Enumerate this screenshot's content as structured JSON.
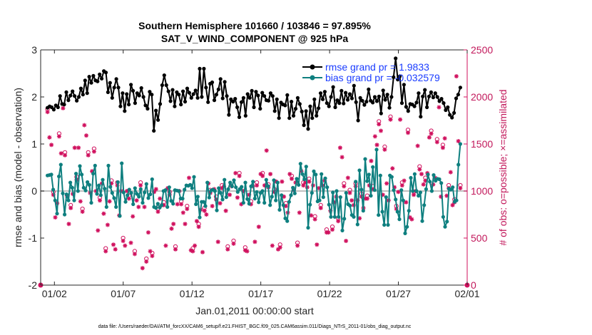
{
  "chart_data": {
    "type": "line",
    "title_line1": "Southern Hemisphere 101660 / 103846 = 97.895%",
    "title_line2": "SAT_V_WIND_COMPONENT @ 925 hPa",
    "xlabel": "Jan.01,2011 00:00:00 start",
    "ylabel_left": "rmse and bias (model - observation)",
    "ylabel_right": "# of obs: o=possible; ×=assimilated",
    "footer": "data file: /Users/raeder/DAI/ATM_forcXX/CAM6_setup/f.e21.FHIST_BGC.f09_025.CAM6assim.011/Diags_NTrS_2011-01/obs_diag_output.nc",
    "xlim": [
      0.5,
      31.5
    ],
    "ylim": [
      -2,
      3
    ],
    "ylim_right": [
      0,
      2500
    ],
    "x_ticks": [
      1.5,
      6.5,
      11.5,
      16.5,
      21.5,
      26.5,
      31.5
    ],
    "x_tick_labels": [
      "01/02",
      "01/07",
      "01/12",
      "01/17",
      "01/22",
      "01/27",
      "02/01"
    ],
    "y_ticks": [
      -2,
      -1,
      0,
      1,
      2,
      3
    ],
    "y_tick_labels": [
      "-2",
      "-1",
      "0",
      "1",
      "2",
      "3"
    ],
    "y_ticks_right": [
      0,
      500,
      1000,
      1500,
      2000,
      2500
    ],
    "y_tick_labels_right": [
      "0",
      "500",
      "1000",
      "1500",
      "2000",
      "2500"
    ],
    "zero_line": 0,
    "colors": {
      "rmse": "#000000",
      "bias": "#0e7f7f",
      "obs": "#d0115e",
      "zero": "#c0c0c0",
      "legend_text": "#1a3cff"
    },
    "series": [
      {
        "name": "rmse grand pr = 1.9833",
        "marker": "filled-circle",
        "axis": "left",
        "values": [
          1.77,
          1.8,
          1.78,
          1.73,
          1.82,
          1.78,
          2.02,
          1.85,
          1.84,
          2.1,
          1.93,
          2.03,
          2.12,
          2.02,
          1.92,
          2.0,
          2.18,
          2.05,
          2.35,
          2.08,
          2.43,
          2.3,
          2.45,
          2.35,
          2.33,
          2.48,
          2.39,
          2.55,
          2.52,
          2.1,
          2.3,
          1.98,
          2.2,
          2.38,
          2.2,
          1.8,
          2.08,
          1.7,
          2.06,
          1.84,
          2.26,
          2.13,
          1.87,
          2.08,
          2.03,
          2.19,
          2.0,
          1.82,
          1.75,
          2.11,
          2.05,
          1.28,
          1.71,
          1.51,
          1.85,
          2.25,
          2.46,
          2.25,
          2.12,
          1.91,
          2.15,
          1.8,
          2.1,
          2.05,
          1.84,
          2.12,
          1.9,
          2.18,
          2.09,
          1.98,
          2.06,
          2.14,
          1.98,
          2.6,
          2.0,
          2.6,
          2.2,
          1.89,
          2.28,
          2.31,
          1.93,
          2.05,
          2.16,
          2.38,
          1.97,
          2.32,
          2.02,
          1.62,
          1.95,
          1.9,
          1.96,
          1.78,
          1.57,
          1.89,
          1.98,
          1.6,
          2.06,
          1.98,
          2.13,
          1.78,
          2.11,
          2.03,
          1.75,
          2.09,
          2.02,
          1.93,
          1.92,
          2.08,
          2.02,
          1.7,
          1.95,
          1.55,
          1.88,
          1.84,
          1.82,
          2.04,
          1.55,
          1.9,
          1.6,
          1.75,
          1.98,
          1.85,
          1.69,
          1.4,
          1.7,
          1.32,
          1.8,
          1.55,
          1.95,
          1.6,
          1.76,
          2.08,
          1.95,
          2.11,
          1.87,
          1.8,
          2.0,
          2.21,
          1.78,
          1.93,
          1.87,
          2.13,
          1.86,
          2.09,
          1.94,
          2.06,
          1.97,
          2.24,
          1.89,
          1.5,
          1.98,
          1.92,
          1.83,
          1.9,
          2.16,
          1.92,
          1.88,
          2.0,
          1.91,
          2.01,
          1.65,
          2.14,
          1.94,
          2.05,
          1.77,
          2.0,
          2.42,
          2.82,
          2.37,
          2.44,
          1.87,
          2.26,
          1.79,
          1.7,
          1.85,
          1.84,
          1.8,
          1.88,
          2.08,
          1.58,
          2.01,
          2.15,
          1.78,
          2.01,
          2.1,
          1.99,
          2.08,
          2.0,
          1.91,
          1.96,
          1.87,
          1.72,
          1.78,
          1.62,
          1.56,
          1.66,
          1.97,
          2.05,
          2.2
        ]
      },
      {
        "name": "bias grand pr = -0.032579",
        "marker": "filled-circle",
        "axis": "left",
        "values": [
          0.33,
          0.34,
          0.35,
          0.03,
          -0.2,
          -0.48,
          0.31,
          0.56,
          -0.05,
          -0.5,
          -0.07,
          -0.2,
          0.18,
          0.07,
          -0.2,
          0.37,
          0.0,
          0.53,
          0.35,
          0.07,
          0.01,
          0.19,
          0.13,
          -0.25,
          0.37,
          0.54,
          -0.06,
          0.12,
          -0.09,
          0.24,
          0.05,
          -0.34,
          0.54,
          0.09,
          -0.04,
          -0.15,
          -0.34,
          0.19,
          -0.53,
          0.59,
          -0.03,
          -0.23,
          -0.09,
          0.03,
          -0.04,
          -0.28,
          0.06,
          -0.06,
          -0.12,
          0.04,
          -0.25,
          -0.03,
          0.15,
          -0.15,
          -0.07,
          0.25,
          -0.34,
          -0.36,
          -0.27,
          -0.35,
          -0.3,
          0.0,
          0.02,
          -0.34,
          0.08,
          -0.21,
          -0.27,
          0.02,
          0.01,
          0.0,
          -0.16,
          -0.16,
          0.03,
          0.12,
          0.11,
          0.13,
          0.06,
          0.3,
          -0.28,
          -0.12,
          -0.56,
          -0.23,
          -0.23,
          -0.32,
          0.18,
          -0.14,
          0.01,
          0.03,
          0.0,
          -0.41,
          0.06,
          -0.04,
          -0.18,
          0.24,
          -0.13,
          0.04,
          0.18,
          0.1,
          0.23,
          0.08,
          -0.02,
          0.04,
          0.09,
          -0.25,
          0.18,
          -0.17,
          -0.27,
          0.1,
          0.2,
          -0.16,
          -0.02,
          -0.24,
          -0.04,
          0.0,
          -0.25,
          0.24,
          0.1,
          -0.3,
          -0.12,
          0.23,
          -0.2,
          0.18,
          -0.4,
          -0.09,
          -0.3,
          -0.58,
          -0.64,
          -0.23,
          -0.09,
          0.07,
          -0.05,
          0.26,
          0.13,
          0.58,
          0.36,
          0.25,
          0.52,
          -0.78,
          -0.29,
          -0.04,
          0.42,
          0.35,
          -0.22,
          -0.2,
          0.36,
          -0.13,
          0.27,
          0.08,
          -0.29,
          -0.55,
          -0.03,
          -0.55,
          0.0,
          -0.55,
          -0.13,
          -0.84,
          -0.59,
          -0.04,
          -0.28,
          -0.31,
          -0.51,
          -0.55,
          0.2,
          -0.71,
          0.44,
          0.03,
          -0.42,
          0.68,
          0.21,
          0.35,
          -0.1,
          0.51,
          0.02,
          0.88,
          -0.51,
          0.33,
          -0.44,
          -0.72,
          -0.13,
          -0.72,
          0.33,
          0.3,
          0.02,
          -0.18,
          -0.44,
          -0.6,
          0.02,
          -0.2,
          -0.9,
          -0.76,
          -0.42,
          0.28,
          0.0,
          0.36,
          0.0,
          -0.1,
          -0.03,
          -0.64,
          -0.3,
          0.04,
          0.35,
          0.2,
          0.0,
          0.34,
          0.22,
          0.26,
          0.25,
          0.17,
          -0.55,
          -0.76,
          -0.65,
          0.05,
          0.03,
          0.08,
          -0.23,
          -0.2,
          0.56,
          1.0
        ]
      },
      {
        "name": "# of obs (possible / assimilated)",
        "marker": "circle-and-asterisk",
        "axis": "right",
        "values": [
          1840,
          1570,
          1490,
          960,
          720,
          870,
          1580,
          1400,
          1880,
          1380,
          950,
          650,
          820,
          970,
          1460,
          1120,
          1460,
          890,
          780,
          1700,
          1590,
          1380,
          980,
          1210,
          1420,
          1000,
          580,
          900,
          1080,
          760,
          360,
          640,
          890,
          1080,
          430,
          380,
          1060,
          740,
          1000,
          470,
          420,
          1000,
          920,
          450,
          730,
          330,
          900,
          830,
          1060,
          180,
          830,
          250,
          560,
          360,
          310,
          990,
          1020,
          780,
          920,
          850,
          850,
          420,
          1030,
          960,
          600,
          650,
          380,
          860,
          1000,
          860,
          770,
          650,
          810,
          1140,
          370,
          360,
          420,
          680,
          620,
          800,
          350,
          790,
          750,
          1080,
          980,
          840,
          1020,
          910,
          460,
          870,
          1030,
          1050,
          790,
          380,
          960,
          1050,
          440,
          1190,
          930,
          1160,
          860,
          1000,
          370,
          360,
          960,
          860,
          1050,
          460,
          1060,
          620,
          1180,
          1160,
          1060,
          1430,
          1040,
          1180,
          420,
          990,
          1100,
          380,
          400,
          1100,
          940,
          840,
          770,
          1180,
          1130,
          1010,
          1090,
          420,
          770,
          1210,
          1060,
          1090,
          1040,
          1100,
          740,
          1060,
          700,
          430,
          1030,
          820,
          1060,
          1110,
          560,
          560,
          790,
          590,
          880,
          940,
          680,
          1460,
          1360,
          1050,
          470,
          1140,
          980,
          900,
          850,
          1050,
          900,
          710,
          940,
          820,
          920,
          920,
          1060,
          1320,
          1020,
          1580,
          1490,
          1710,
          1640,
          960,
          1440,
          1080,
          900,
          1760,
          1240,
          1040,
          810,
          990,
          1760,
          1060,
          1110,
          880,
          1620,
          720,
          700,
          960,
          1000,
          1480,
          1230,
          1180,
          1070,
          1110,
          1190,
          1570,
          1610,
          1070,
          1140,
          1520,
          1890,
          940,
          1460,
          1560,
          950,
          1030,
          1200,
          850,
          880,
          2220,
          1530,
          1030
        ]
      }
    ]
  }
}
